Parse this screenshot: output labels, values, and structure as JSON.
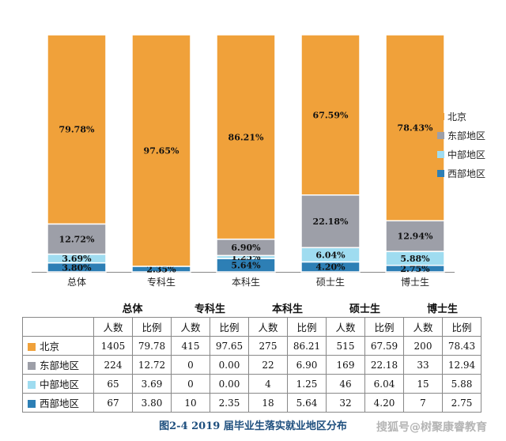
{
  "chart_data": {
    "type": "bar",
    "stacked": true,
    "normalized": true,
    "categories": [
      "总体",
      "专科生",
      "本科生",
      "硕士生",
      "博士生"
    ],
    "series": [
      {
        "name": "西部地区",
        "color": "#2d7fb5",
        "values": [
          3.8,
          2.35,
          5.64,
          4.2,
          2.75
        ],
        "labels": [
          "3.80%",
          "2.35%",
          "5.64%",
          "4.20%",
          "2.75%"
        ]
      },
      {
        "name": "中部地区",
        "color": "#9fdcf0",
        "values": [
          3.69,
          0.0,
          1.25,
          6.04,
          5.88
        ],
        "labels": [
          "3.69%",
          "",
          "1.25%",
          "6.04%",
          "5.88%"
        ]
      },
      {
        "name": "东部地区",
        "color": "#9d9fa8",
        "values": [
          12.72,
          0.0,
          6.9,
          22.18,
          12.94
        ],
        "labels": [
          "12.72%",
          "",
          "6.90%",
          "22.18%",
          "12.94%"
        ]
      },
      {
        "name": "北京",
        "color": "#f0a13a",
        "values": [
          79.78,
          97.65,
          86.21,
          67.59,
          78.43
        ],
        "labels": [
          "79.78%",
          "97.65%",
          "86.21%",
          "67.59%",
          "78.43%"
        ]
      }
    ],
    "legend": {
      "position": "right",
      "entries": [
        "北京",
        "东部地区",
        "中部地区",
        "西部地区"
      ]
    },
    "grid": false,
    "ylim": [
      0,
      100
    ]
  },
  "table": {
    "groups": [
      "总体",
      "专科生",
      "本科生",
      "硕士生",
      "博士生"
    ],
    "subheaders": [
      "人数",
      "比例"
    ],
    "rows": [
      {
        "label": "北京",
        "color": "#f0a13a",
        "cells": [
          "1405",
          "79.78",
          "415",
          "97.65",
          "275",
          "86.21",
          "515",
          "67.59",
          "200",
          "78.43"
        ]
      },
      {
        "label": "东部地区",
        "color": "#9d9fa8",
        "cells": [
          "224",
          "12.72",
          "0",
          "0.00",
          "22",
          "6.90",
          "169",
          "22.18",
          "33",
          "12.94"
        ]
      },
      {
        "label": "中部地区",
        "color": "#9fdcf0",
        "cells": [
          "65",
          "3.69",
          "0",
          "0.00",
          "4",
          "1.25",
          "46",
          "6.04",
          "15",
          "5.88"
        ]
      },
      {
        "label": "西部地区",
        "color": "#2d7fb5",
        "cells": [
          "67",
          "3.80",
          "10",
          "2.35",
          "18",
          "5.64",
          "32",
          "4.20",
          "7",
          "2.75"
        ]
      }
    ]
  },
  "caption": "图2-4    2019 届毕业生落实就业地区分布",
  "watermark": "搜狐号@树聚康睿教育"
}
